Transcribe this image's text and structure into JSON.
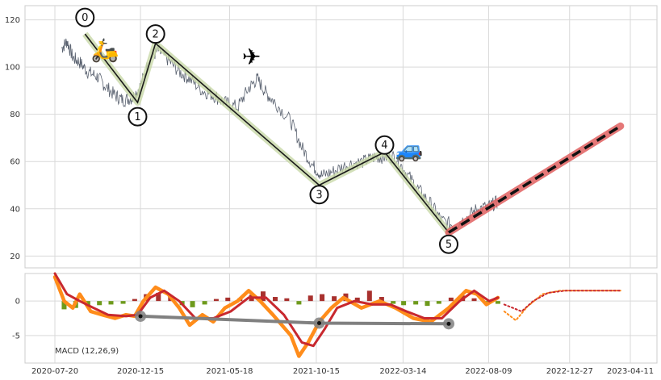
{
  "chart_data": [
    {
      "type": "line",
      "panel": "price",
      "x_axis": {
        "type": "date",
        "range": [
          "2020-07-20",
          "2023-04-11"
        ]
      },
      "y_axis": {
        "ticks": [
          20,
          40,
          60,
          80,
          100,
          120
        ],
        "range": [
          15,
          126
        ]
      },
      "grid": true,
      "series": [
        {
          "role": "price",
          "color": "#5a6270",
          "points": [
            [
              "2020-08-01",
              108
            ],
            [
              "2020-08-10",
              111
            ],
            [
              "2020-08-20",
              104
            ],
            [
              "2020-09-01",
              102
            ],
            [
              "2020-09-15",
              98
            ],
            [
              "2020-10-01",
              96
            ],
            [
              "2020-10-15",
              92
            ],
            [
              "2020-11-01",
              88
            ],
            [
              "2020-11-15",
              86
            ],
            [
              "2020-12-01",
              87
            ],
            [
              "2020-12-15",
              92
            ],
            [
              "2021-01-01",
              104
            ],
            [
              "2021-01-15",
              107
            ],
            [
              "2021-02-01",
              103
            ],
            [
              "2021-02-20",
              98
            ],
            [
              "2021-03-10",
              95
            ],
            [
              "2021-04-01",
              90
            ],
            [
              "2021-04-20",
              88
            ],
            [
              "2021-05-10",
              85
            ],
            [
              "2021-06-01",
              83
            ],
            [
              "2021-06-20",
              91
            ],
            [
              "2021-07-05",
              95
            ],
            [
              "2021-07-20",
              89
            ],
            [
              "2021-08-05",
              85
            ],
            [
              "2021-09-01",
              77
            ],
            [
              "2021-09-20",
              66
            ],
            [
              "2021-10-10",
              58
            ],
            [
              "2021-10-25",
              54
            ],
            [
              "2021-11-15",
              56
            ],
            [
              "2021-12-10",
              59
            ],
            [
              "2022-01-05",
              60
            ],
            [
              "2022-01-25",
              62
            ],
            [
              "2022-02-10",
              62
            ],
            [
              "2022-03-01",
              62
            ],
            [
              "2022-03-20",
              55
            ],
            [
              "2022-04-10",
              48
            ],
            [
              "2022-05-01",
              42
            ],
            [
              "2022-05-20",
              35
            ],
            [
              "2022-06-10",
              33
            ],
            [
              "2022-07-01",
              36
            ],
            [
              "2022-07-20",
              40
            ],
            [
              "2022-08-10",
              41
            ],
            [
              "2022-08-25",
              43
            ]
          ]
        },
        {
          "role": "zigzag",
          "color": "#1a1a1a",
          "points": [
            [
              "2020-09-10",
              114
            ],
            [
              "2020-12-10",
              85
            ],
            [
              "2021-01-10",
              110
            ],
            [
              "2021-10-20",
              50
            ],
            [
              "2022-02-10",
              64
            ],
            [
              "2022-06-01",
              30
            ]
          ]
        },
        {
          "role": "projection",
          "color": "#e06060",
          "points": [
            [
              "2022-06-01",
              30
            ],
            [
              "2023-03-25",
              75
            ]
          ]
        }
      ],
      "annotations": [
        {
          "text": "0",
          "x": "2020-09-10",
          "y": 121
        },
        {
          "text": "1",
          "x": "2020-12-10",
          "y": 79
        },
        {
          "text": "2",
          "x": "2021-01-10",
          "y": 114
        },
        {
          "text": "3",
          "x": "2021-10-20",
          "y": 46
        },
        {
          "text": "4",
          "x": "2022-02-10",
          "y": 67
        },
        {
          "text": "5",
          "x": "2022-06-01",
          "y": 25
        }
      ],
      "icons": [
        {
          "name": "scooter-icon",
          "glyph": "🛵",
          "x": "2020-10-15",
          "y": 104
        },
        {
          "name": "airplane-icon",
          "glyph": "✈",
          "x": "2021-06-25",
          "y": 101
        },
        {
          "name": "car-icon",
          "glyph": "🚙",
          "x": "2022-03-25",
          "y": 62
        }
      ]
    },
    {
      "type": "line",
      "panel": "macd",
      "legend_text": "MACD (12,26,9)",
      "x_axis": {
        "type": "date",
        "ticks": [
          "2020-07-20",
          "2020-12-15",
          "2021-05-18",
          "2021-10-15",
          "2022-03-14",
          "2022-08-09",
          "2022-12-27",
          "2023-04-11"
        ]
      },
      "y_axis": {
        "ticks": [
          0,
          -5
        ],
        "range": [
          -9,
          4
        ]
      },
      "grid": true,
      "series": [
        {
          "name": "MACD",
          "color": "#ff8c1a",
          "points": [
            [
              "2020-07-20",
              3.5
            ],
            [
              "2020-08-05",
              0
            ],
            [
              "2020-08-20",
              -1
            ],
            [
              "2020-09-01",
              1
            ],
            [
              "2020-09-20",
              -1.5
            ],
            [
              "2020-10-10",
              -2
            ],
            [
              "2020-11-01",
              -2.5
            ],
            [
              "2020-11-20",
              -2
            ],
            [
              "2020-12-05",
              -2.2
            ],
            [
              "2020-12-20",
              0
            ],
            [
              "2021-01-10",
              2
            ],
            [
              "2021-02-01",
              1
            ],
            [
              "2021-02-20",
              -1
            ],
            [
              "2021-03-10",
              -3.5
            ],
            [
              "2021-04-01",
              -2
            ],
            [
              "2021-04-20",
              -3
            ],
            [
              "2021-05-10",
              -1
            ],
            [
              "2021-06-01",
              0
            ],
            [
              "2021-06-20",
              1.5
            ],
            [
              "2021-07-10",
              0
            ],
            [
              "2021-08-01",
              -2
            ],
            [
              "2021-09-01",
              -5
            ],
            [
              "2021-09-15",
              -8
            ],
            [
              "2021-10-01",
              -6
            ],
            [
              "2021-10-20",
              -3
            ],
            [
              "2021-11-10",
              -1
            ],
            [
              "2021-12-01",
              0.5
            ],
            [
              "2022-01-01",
              -1
            ],
            [
              "2022-02-01",
              0
            ],
            [
              "2022-03-01",
              -1
            ],
            [
              "2022-04-01",
              -2.5
            ],
            [
              "2022-05-01",
              -3
            ],
            [
              "2022-06-01",
              -1
            ],
            [
              "2022-07-01",
              1.5
            ],
            [
              "2022-07-20",
              1
            ],
            [
              "2022-08-05",
              -0.5
            ],
            [
              "2022-08-25",
              0.5
            ]
          ]
        },
        {
          "name": "Signal",
          "color": "#c8282e",
          "points": [
            [
              "2020-07-20",
              4
            ],
            [
              "2020-08-10",
              1
            ],
            [
              "2020-09-01",
              0
            ],
            [
              "2020-09-25",
              -1
            ],
            [
              "2020-10-20",
              -2
            ],
            [
              "2020-11-20",
              -2.2
            ],
            [
              "2020-12-10",
              -2
            ],
            [
              "2021-01-01",
              0.5
            ],
            [
              "2021-01-25",
              1.5
            ],
            [
              "2021-02-20",
              0
            ],
            [
              "2021-03-20",
              -2.5
            ],
            [
              "2021-04-20",
              -2.5
            ],
            [
              "2021-05-20",
              -1.5
            ],
            [
              "2021-06-20",
              0.5
            ],
            [
              "2021-07-20",
              0.5
            ],
            [
              "2021-08-20",
              -2
            ],
            [
              "2021-09-20",
              -6
            ],
            [
              "2021-10-10",
              -6.5
            ],
            [
              "2021-10-30",
              -4
            ],
            [
              "2021-11-20",
              -1
            ],
            [
              "2021-12-20",
              0
            ],
            [
              "2022-01-20",
              -0.5
            ],
            [
              "2022-02-20",
              -0.5
            ],
            [
              "2022-03-20",
              -1.5
            ],
            [
              "2022-04-20",
              -2.5
            ],
            [
              "2022-05-20",
              -2.5
            ],
            [
              "2022-06-20",
              0
            ],
            [
              "2022-07-15",
              1.5
            ],
            [
              "2022-08-10",
              0
            ],
            [
              "2022-08-25",
              0.5
            ]
          ]
        },
        {
          "name": "MACD projection",
          "color": "#ff8c1a",
          "dotted": true,
          "points": [
            [
              "2022-09-05",
              -1.5
            ],
            [
              "2022-09-25",
              -2.8
            ],
            [
              "2022-10-15",
              -0.8
            ],
            [
              "2022-11-10",
              1
            ],
            [
              "2022-12-10",
              1.5
            ],
            [
              "2023-03-25",
              1.5
            ]
          ]
        },
        {
          "name": "Signal projection",
          "color": "#c8282e",
          "dotted": true,
          "points": [
            [
              "2022-09-05",
              -0.5
            ],
            [
              "2022-10-05",
              -1.5
            ],
            [
              "2022-10-25",
              0
            ],
            [
              "2022-11-20",
              1.2
            ],
            [
              "2022-12-20",
              1.5
            ],
            [
              "2023-03-25",
              1.5
            ]
          ]
        },
        {
          "name": "Divergence line",
          "color": "#808080",
          "points": [
            [
              "2020-12-15",
              -2.2
            ],
            [
              "2021-10-20",
              -3.2
            ],
            [
              "2022-06-01",
              -3.3
            ]
          ]
        }
      ],
      "histogram": {
        "positive_color": "#a8312e",
        "negative_color": "#6e9a1c",
        "bars": [
          [
            "2020-08-05",
            -1.2
          ],
          [
            "2020-08-25",
            -1.0
          ],
          [
            "2020-09-15",
            -0.8
          ],
          [
            "2020-10-05",
            -0.6
          ],
          [
            "2020-10-25",
            -0.5
          ],
          [
            "2020-11-15",
            -0.4
          ],
          [
            "2020-12-05",
            0.3
          ],
          [
            "2020-12-25",
            1.0
          ],
          [
            "2021-01-15",
            1.2
          ],
          [
            "2021-02-05",
            0.8
          ],
          [
            "2021-02-25",
            -0.6
          ],
          [
            "2021-03-15",
            -0.9
          ],
          [
            "2021-04-05",
            -0.5
          ],
          [
            "2021-04-25",
            0.3
          ],
          [
            "2021-05-15",
            0.5
          ],
          [
            "2021-06-05",
            0.4
          ],
          [
            "2021-06-25",
            0.9
          ],
          [
            "2021-07-15",
            1.4
          ],
          [
            "2021-08-05",
            0.6
          ],
          [
            "2021-08-25",
            0.4
          ],
          [
            "2021-09-15",
            -0.5
          ],
          [
            "2021-10-05",
            0.8
          ],
          [
            "2021-10-25",
            1.0
          ],
          [
            "2021-11-15",
            0.7
          ],
          [
            "2021-12-05",
            1.1
          ],
          [
            "2021-12-25",
            0.5
          ],
          [
            "2022-01-15",
            1.5
          ],
          [
            "2022-02-05",
            0.6
          ],
          [
            "2022-02-25",
            -0.4
          ],
          [
            "2022-03-15",
            -0.6
          ],
          [
            "2022-04-05",
            -0.5
          ],
          [
            "2022-04-25",
            -0.7
          ],
          [
            "2022-05-15",
            -0.4
          ],
          [
            "2022-06-05",
            0.5
          ],
          [
            "2022-06-25",
            0.8
          ],
          [
            "2022-07-15",
            0.4
          ],
          [
            "2022-08-05",
            -0.3
          ],
          [
            "2022-08-25",
            -0.4
          ]
        ]
      },
      "divergence_points": [
        {
          "x": "2020-12-15",
          "y": -2.2
        },
        {
          "x": "2021-10-20",
          "y": -3.2
        },
        {
          "x": "2022-06-01",
          "y": -3.3
        }
      ]
    }
  ]
}
